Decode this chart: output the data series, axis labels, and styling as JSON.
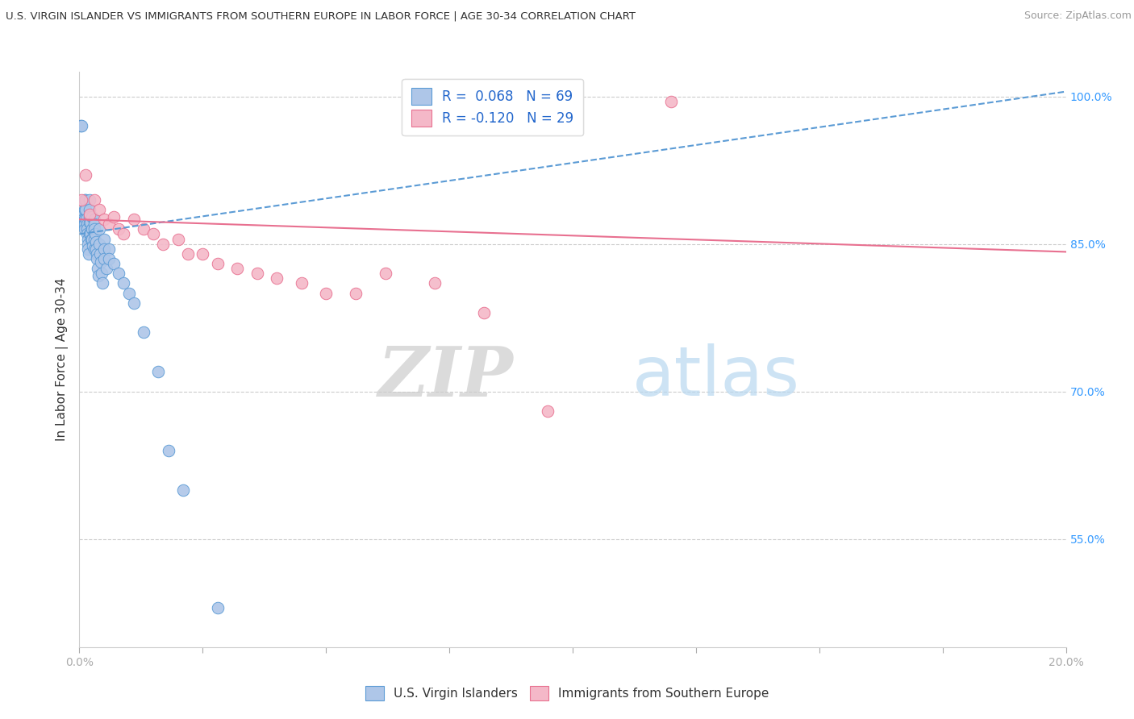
{
  "title": "U.S. VIRGIN ISLANDER VS IMMIGRANTS FROM SOUTHERN EUROPE IN LABOR FORCE | AGE 30-34 CORRELATION CHART",
  "source": "Source: ZipAtlas.com",
  "ylabel": "In Labor Force | Age 30-34",
  "r_blue": 0.068,
  "n_blue": 69,
  "r_pink": -0.12,
  "n_pink": 29,
  "legend_blue_label": "U.S. Virgin Islanders",
  "legend_pink_label": "Immigrants from Southern Europe",
  "blue_color": "#aec6e8",
  "blue_edge_color": "#5b9bd5",
  "pink_color": "#f4b8c8",
  "pink_edge_color": "#e87090",
  "right_yticks": [
    100.0,
    85.0,
    70.0,
    55.0
  ],
  "xmin": 0.0,
  "xmax": 0.2,
  "ymin": 0.44,
  "ymax": 1.025,
  "blue_points_x": [
    0.0002,
    0.0004,
    0.0005,
    0.0006,
    0.0007,
    0.0008,
    0.0009,
    0.001,
    0.001,
    0.001,
    0.001,
    0.001,
    0.001,
    0.0012,
    0.0013,
    0.0014,
    0.0015,
    0.0015,
    0.0016,
    0.0017,
    0.0018,
    0.0018,
    0.0019,
    0.002,
    0.002,
    0.002,
    0.002,
    0.002,
    0.0022,
    0.0023,
    0.0024,
    0.0025,
    0.0025,
    0.0026,
    0.0027,
    0.003,
    0.003,
    0.003,
    0.003,
    0.003,
    0.0032,
    0.0033,
    0.0034,
    0.0035,
    0.0036,
    0.0037,
    0.0038,
    0.004,
    0.004,
    0.0042,
    0.0044,
    0.0045,
    0.0046,
    0.005,
    0.005,
    0.005,
    0.0055,
    0.006,
    0.006,
    0.007,
    0.008,
    0.009,
    0.01,
    0.011,
    0.013,
    0.016,
    0.018,
    0.021,
    0.028
  ],
  "blue_points_y": [
    0.97,
    0.97,
    0.87,
    0.87,
    0.88,
    0.875,
    0.87,
    0.895,
    0.885,
    0.875,
    0.875,
    0.87,
    0.865,
    0.895,
    0.885,
    0.875,
    0.87,
    0.865,
    0.86,
    0.855,
    0.85,
    0.845,
    0.84,
    0.895,
    0.885,
    0.878,
    0.872,
    0.86,
    0.872,
    0.86,
    0.855,
    0.878,
    0.865,
    0.855,
    0.848,
    0.875,
    0.87,
    0.865,
    0.855,
    0.845,
    0.86,
    0.852,
    0.845,
    0.84,
    0.835,
    0.825,
    0.818,
    0.865,
    0.85,
    0.84,
    0.832,
    0.82,
    0.81,
    0.855,
    0.845,
    0.835,
    0.825,
    0.845,
    0.835,
    0.83,
    0.82,
    0.81,
    0.8,
    0.79,
    0.76,
    0.72,
    0.64,
    0.6,
    0.48
  ],
  "pink_points_x": [
    0.0004,
    0.0012,
    0.002,
    0.003,
    0.004,
    0.005,
    0.006,
    0.007,
    0.008,
    0.009,
    0.011,
    0.013,
    0.015,
    0.017,
    0.02,
    0.022,
    0.025,
    0.028,
    0.032,
    0.036,
    0.04,
    0.045,
    0.05,
    0.056,
    0.062,
    0.072,
    0.082,
    0.095,
    0.12
  ],
  "pink_points_y": [
    0.895,
    0.92,
    0.88,
    0.895,
    0.885,
    0.875,
    0.87,
    0.878,
    0.865,
    0.86,
    0.875,
    0.865,
    0.86,
    0.85,
    0.855,
    0.84,
    0.84,
    0.83,
    0.825,
    0.82,
    0.815,
    0.81,
    0.8,
    0.8,
    0.82,
    0.81,
    0.78,
    0.68,
    0.995
  ],
  "blue_trend_x": [
    0.0,
    0.2
  ],
  "blue_trend_y": [
    0.86,
    1.005
  ],
  "pink_trend_x": [
    0.0,
    0.2
  ],
  "pink_trend_y": [
    0.875,
    0.842
  ],
  "watermark_zip": "ZIP",
  "watermark_atlas": "atlas",
  "background_color": "#ffffff"
}
